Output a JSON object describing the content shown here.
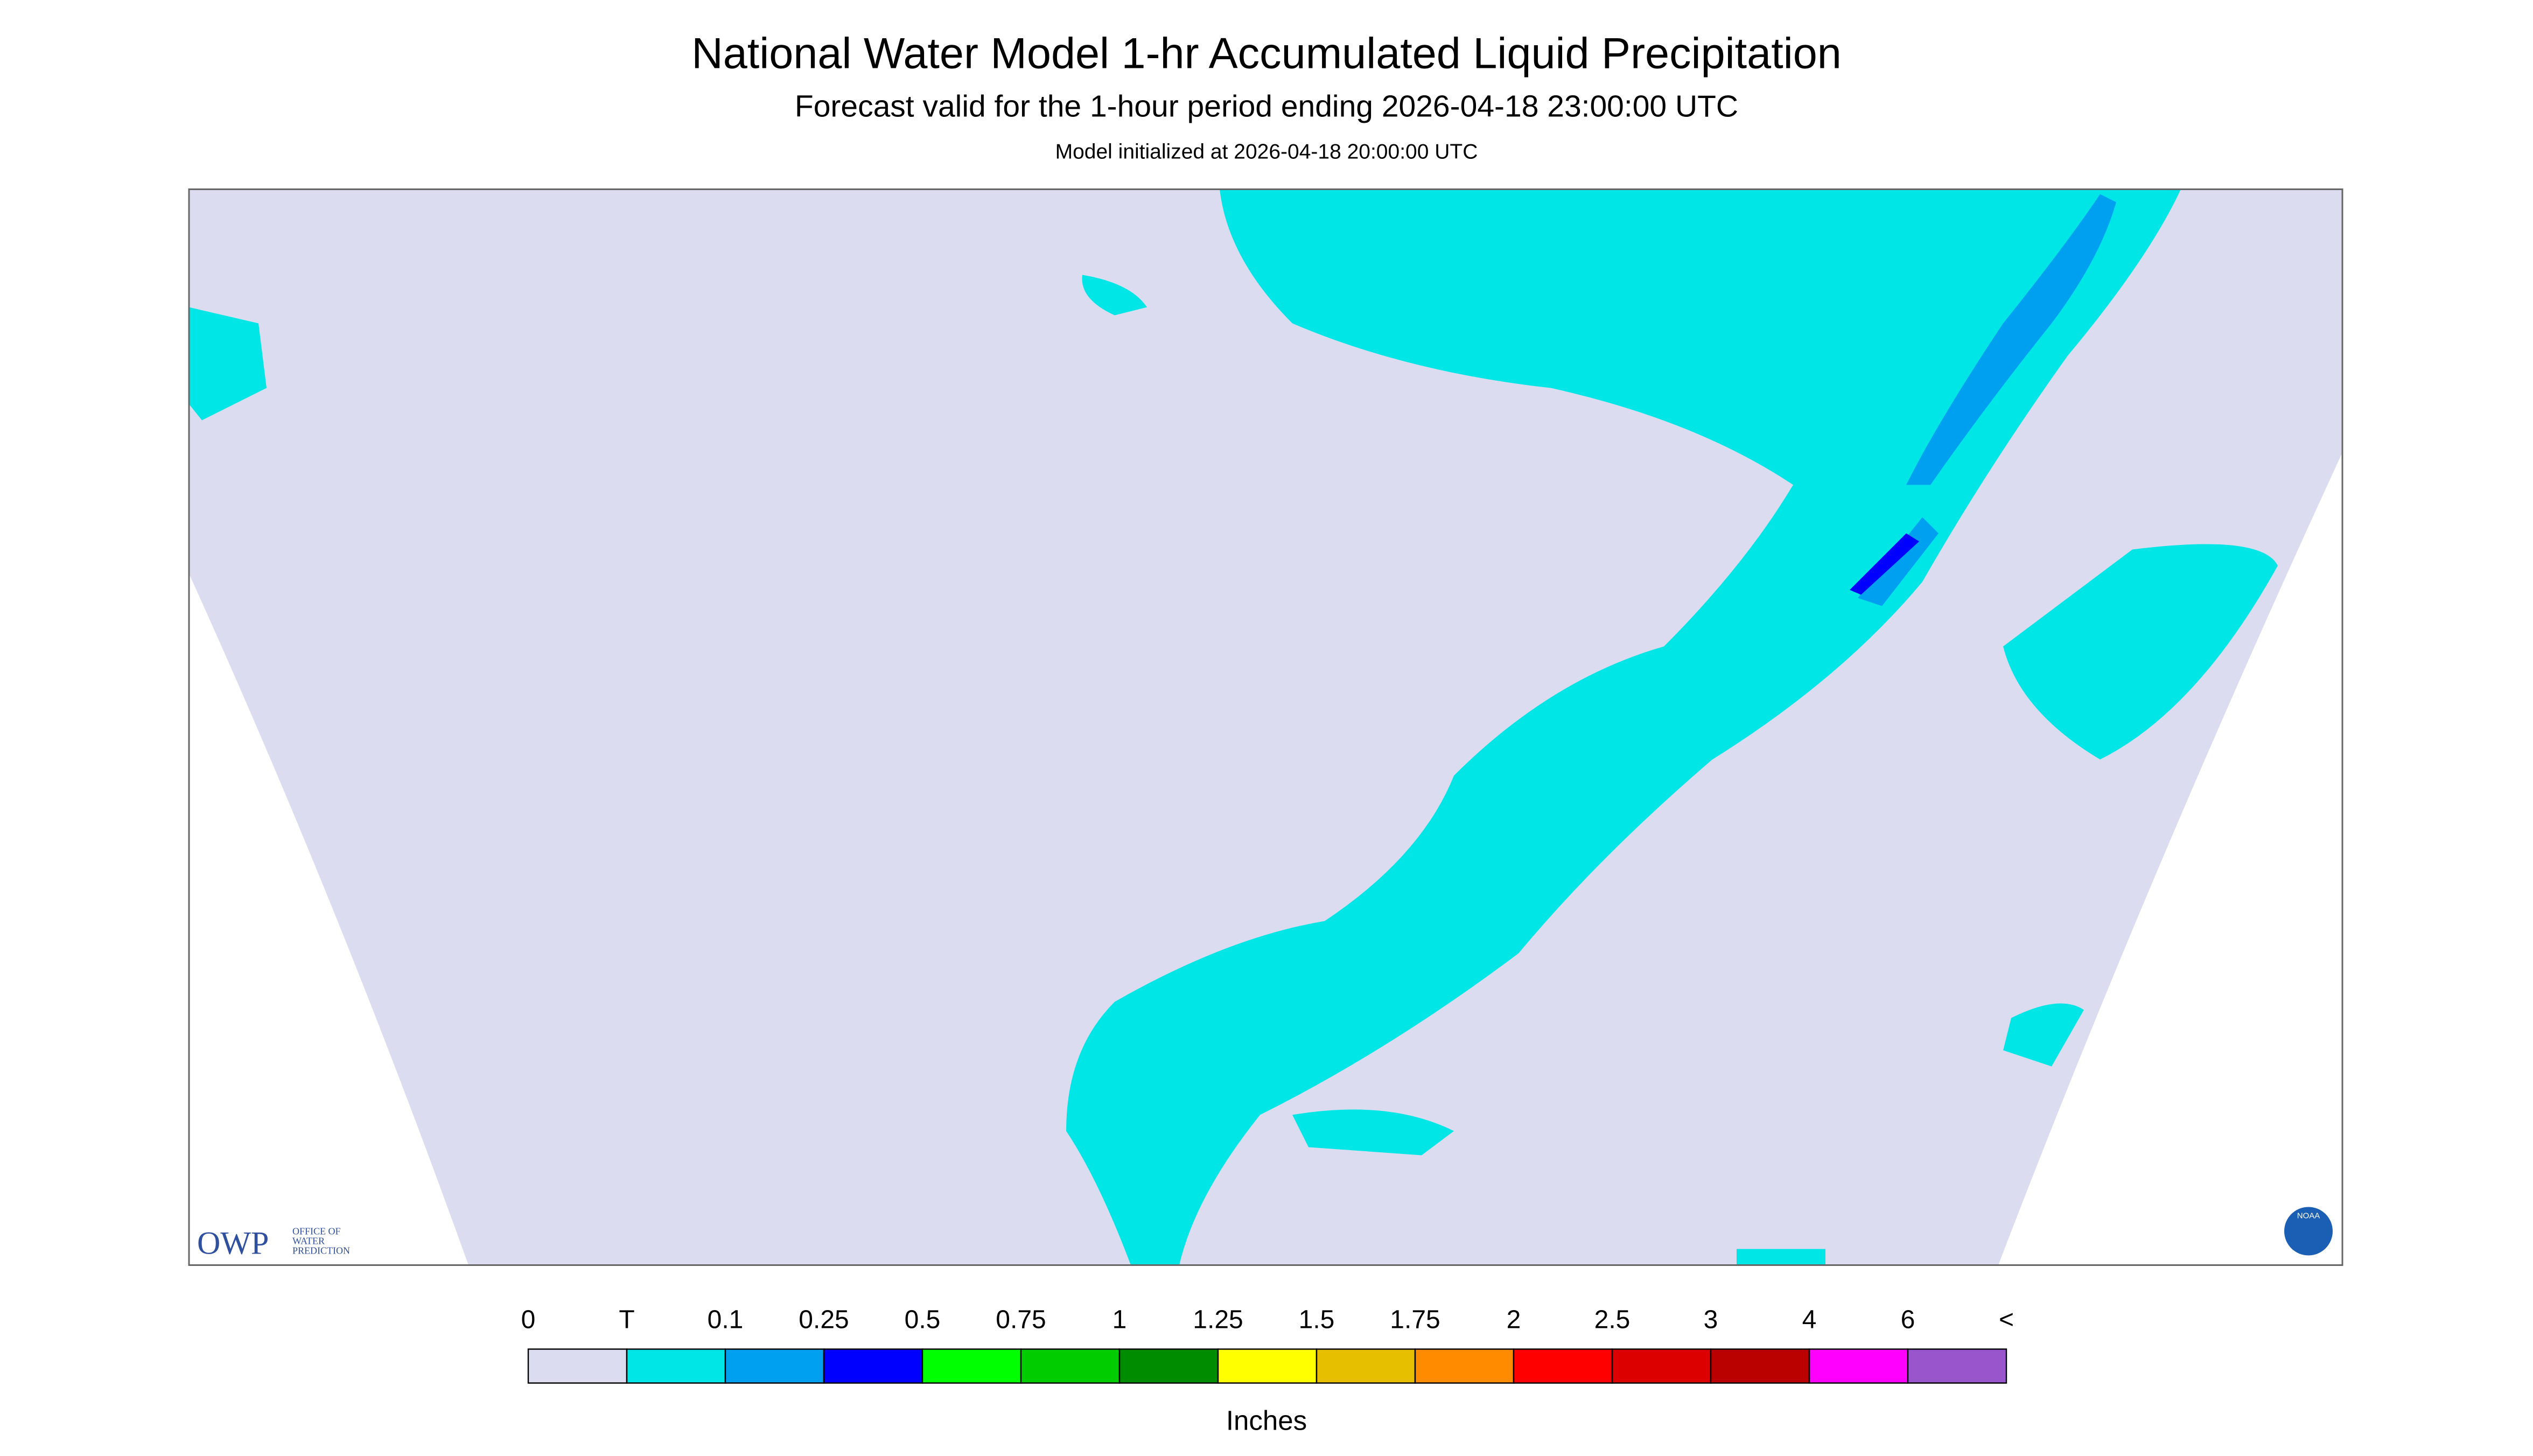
{
  "header": {
    "title": "National Water Model 1-hr Accumulated Liquid Precipitation",
    "subtitle": "Forecast valid for the 1-hour period ending 2026-04-18 23:00:00 UTC",
    "init": "Model initialized at 2026-04-18 20:00:00 UTC"
  },
  "logo": {
    "abbr": "OWP",
    "name_lines": [
      "OFFICE OF",
      "WATER",
      "PREDICTION"
    ],
    "badge": "NOAA"
  },
  "legend": {
    "labels": [
      "0",
      "T",
      "0.1",
      "0.25",
      "0.5",
      "0.75",
      "1",
      "1.25",
      "1.5",
      "1.75",
      "2",
      "2.5",
      "3",
      "4",
      "6",
      "<"
    ],
    "colors": [
      "#dcdcf0",
      "#00e6e6",
      "#00a0f0",
      "#0000ff",
      "#00ff00",
      "#00cc00",
      "#008c00",
      "#ffff00",
      "#e6bf00",
      "#ff8c00",
      "#ff0000",
      "#dd0000",
      "#bb0000",
      "#ff00ff",
      "#9955cc"
    ],
    "unit": "Inches"
  }
}
